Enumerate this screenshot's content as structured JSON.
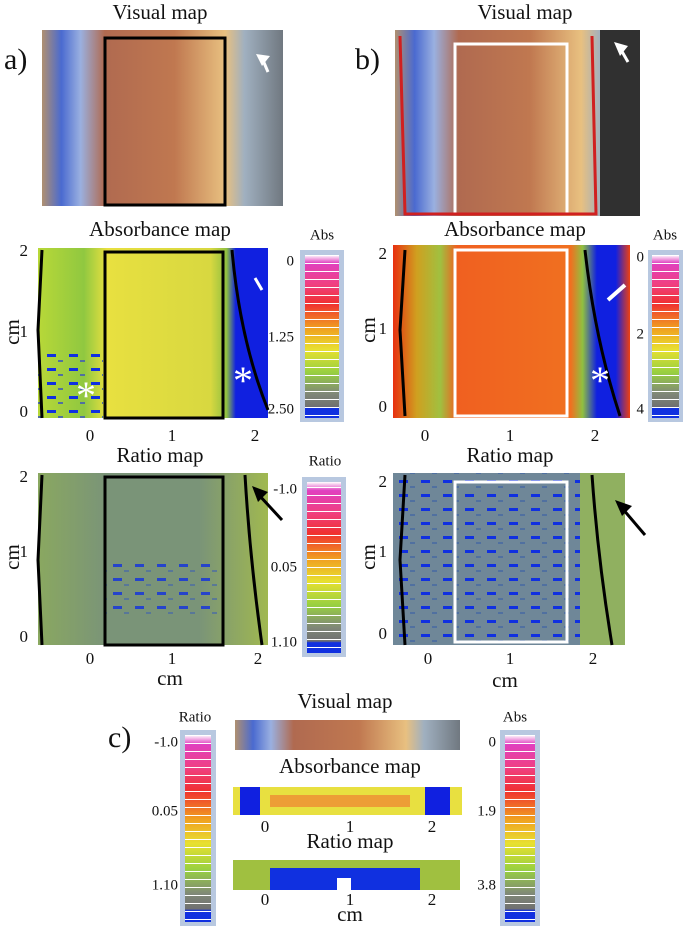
{
  "panels": [
    {
      "label": "a)",
      "visual": {
        "title": "Visual map"
      },
      "absorbance": {
        "title": "Absorbance map",
        "ylabel": "cm",
        "yticks": [
          "2",
          "1",
          "0"
        ],
        "xticks": [
          "0",
          "1",
          "2"
        ],
        "marker": "*"
      },
      "abs_colorbar": {
        "title": "Abs",
        "labels": [
          "0",
          "1.25",
          "2.50"
        ]
      },
      "ratio": {
        "title": "Ratio map",
        "ylabel": "cm",
        "xlabel": "cm",
        "yticks": [
          "2",
          "1",
          "0"
        ],
        "xticks": [
          "0",
          "1",
          "2"
        ]
      },
      "ratio_colorbar": {
        "title": "Ratio",
        "labels": [
          "-1.0",
          "0.05",
          "1.10"
        ]
      }
    },
    {
      "label": "b)",
      "visual": {
        "title": "Visual map"
      },
      "absorbance": {
        "title": "Absorbance map",
        "ylabel": "cm",
        "yticks": [
          "2",
          "1",
          "0"
        ],
        "xticks": [
          "0",
          "1",
          "2"
        ],
        "marker": "*"
      },
      "abs_colorbar": {
        "title": "Abs",
        "labels": [
          "0",
          "2",
          "4"
        ]
      },
      "ratio": {
        "title": "Ratio map",
        "ylabel": "cm",
        "xlabel": "cm",
        "yticks": [
          "2",
          "1",
          "0"
        ],
        "xticks": [
          "0",
          "1",
          "2"
        ]
      }
    },
    {
      "label": "c)",
      "visual": {
        "title": "Visual map"
      },
      "absorbance": {
        "title": "Absorbance map",
        "xticks": [
          "0",
          "1",
          "2"
        ]
      },
      "abs_colorbar": {
        "title": "Abs",
        "labels": [
          "0",
          "1.9",
          "3.8"
        ]
      },
      "ratio": {
        "title": "Ratio map",
        "xlabel": "cm",
        "xticks": [
          "0",
          "1",
          "2"
        ]
      },
      "ratio_colorbar": {
        "title": "Ratio",
        "labels": [
          "-1.0",
          "0.05",
          "1.10"
        ]
      }
    }
  ]
}
